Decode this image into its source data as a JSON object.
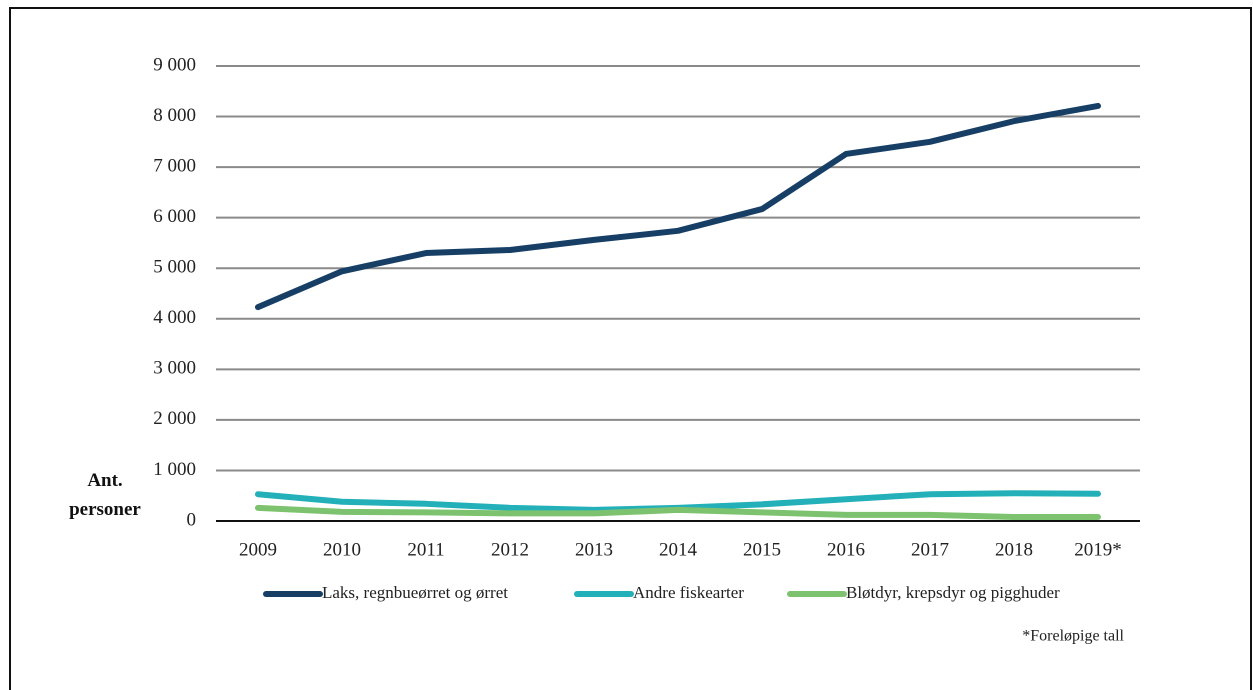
{
  "chart_data": {
    "type": "line",
    "y_label": "Ant. personer",
    "categories": [
      "2009",
      "2010",
      "2011",
      "2012",
      "2013",
      "2014",
      "2015",
      "2016",
      "2017",
      "2018",
      "2019*"
    ],
    "series": [
      {
        "name": "Laks, regnbueørret og ørret",
        "color": "#173f66",
        "values": [
          4230,
          4940,
          5300,
          5360,
          5560,
          5740,
          6170,
          7260,
          7500,
          7910,
          8210
        ]
      },
      {
        "name": "Andre fiskearter",
        "color": "#24b0b8",
        "values": [
          530,
          380,
          340,
          260,
          220,
          260,
          330,
          430,
          530,
          550,
          540
        ]
      },
      {
        "name": "Bløtdyr, krepsdyr og pigghuder",
        "color": "#7dc36f",
        "values": [
          260,
          180,
          170,
          150,
          150,
          220,
          170,
          120,
          120,
          80,
          80
        ]
      }
    ],
    "ylim": [
      0,
      9000
    ],
    "yticks": [
      0,
      {
        "value": 1000,
        "label": "1 000"
      },
      {
        "value": 2000,
        "label": "2 000"
      },
      {
        "value": 3000,
        "label": "3 000"
      },
      {
        "value": 4000,
        "label": "4 000"
      },
      {
        "value": 5000,
        "label": "5 000"
      },
      {
        "value": 6000,
        "label": "6 000"
      },
      {
        "value": 7000,
        "label": "7 000"
      },
      {
        "value": 8000,
        "label": "8 000"
      },
      {
        "value": 9000,
        "label": "9 000"
      }
    ],
    "grid": true,
    "note": "*Foreløpige tall"
  }
}
